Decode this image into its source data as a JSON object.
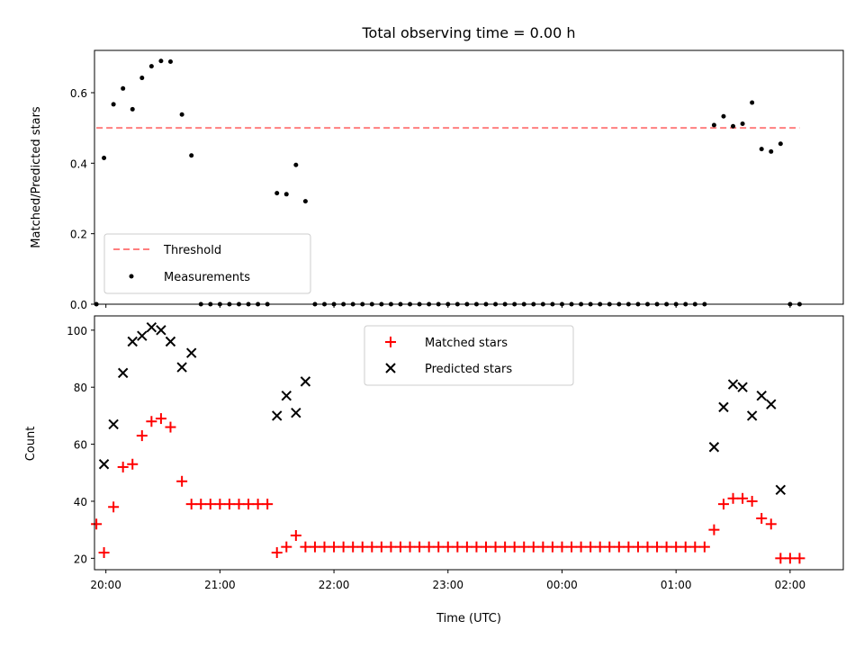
{
  "chart_data": [
    {
      "type": "scatter",
      "title": "Total observing time = 0.00 h",
      "xlabel": "",
      "ylabel": "Matched/Predicted stars",
      "ylim": [
        0,
        0.72
      ],
      "yticks": [
        "0.0",
        "0.2",
        "0.4",
        "0.6"
      ],
      "xlim": [
        "19:54",
        "02:28"
      ],
      "legend_position": "lower-left",
      "threshold": {
        "name": "Threshold",
        "value": 0.5,
        "color": "#ff7f7f",
        "x_range": [
          "19:55",
          "02:05"
        ]
      },
      "series": [
        {
          "name": "Measurements",
          "color": "#000000",
          "points": [
            [
              "19:55",
              0.0
            ],
            [
              "19:59",
              0.415
            ],
            [
              "20:04",
              0.567
            ],
            [
              "20:09",
              0.612
            ],
            [
              "20:14",
              0.553
            ],
            [
              "20:19",
              0.642
            ],
            [
              "20:24",
              0.675
            ],
            [
              "20:29",
              0.69
            ],
            [
              "20:34",
              0.688
            ],
            [
              "20:40",
              0.538
            ],
            [
              "20:45",
              0.422
            ],
            [
              "20:50",
              0.0
            ],
            [
              "20:55",
              0.0
            ],
            [
              "21:00",
              0.0
            ],
            [
              "21:05",
              0.0
            ],
            [
              "21:10",
              0.0
            ],
            [
              "21:15",
              0.0
            ],
            [
              "21:20",
              0.0
            ],
            [
              "21:25",
              0.0
            ],
            [
              "21:30",
              0.315
            ],
            [
              "21:35",
              0.312
            ],
            [
              "21:40",
              0.395
            ],
            [
              "21:45",
              0.292
            ],
            [
              "21:50",
              0.0
            ],
            [
              "21:55",
              0.0
            ],
            [
              "22:00",
              0.0
            ],
            [
              "22:05",
              0.0
            ],
            [
              "22:10",
              0.0
            ],
            [
              "22:15",
              0.0
            ],
            [
              "22:20",
              0.0
            ],
            [
              "22:25",
              0.0
            ],
            [
              "22:30",
              0.0
            ],
            [
              "22:35",
              0.0
            ],
            [
              "22:40",
              0.0
            ],
            [
              "22:45",
              0.0
            ],
            [
              "22:50",
              0.0
            ],
            [
              "22:55",
              0.0
            ],
            [
              "23:00",
              0.0
            ],
            [
              "23:05",
              0.0
            ],
            [
              "23:10",
              0.0
            ],
            [
              "23:15",
              0.0
            ],
            [
              "23:20",
              0.0
            ],
            [
              "23:25",
              0.0
            ],
            [
              "23:30",
              0.0
            ],
            [
              "23:35",
              0.0
            ],
            [
              "23:40",
              0.0
            ],
            [
              "23:45",
              0.0
            ],
            [
              "23:50",
              0.0
            ],
            [
              "23:55",
              0.0
            ],
            [
              "00:00",
              0.0
            ],
            [
              "00:05",
              0.0
            ],
            [
              "00:10",
              0.0
            ],
            [
              "00:15",
              0.0
            ],
            [
              "00:20",
              0.0
            ],
            [
              "00:25",
              0.0
            ],
            [
              "00:30",
              0.0
            ],
            [
              "00:35",
              0.0
            ],
            [
              "00:40",
              0.0
            ],
            [
              "00:45",
              0.0
            ],
            [
              "00:50",
              0.0
            ],
            [
              "00:55",
              0.0
            ],
            [
              "01:00",
              0.0
            ],
            [
              "01:05",
              0.0
            ],
            [
              "01:10",
              0.0
            ],
            [
              "01:15",
              0.0
            ],
            [
              "01:20",
              0.508
            ],
            [
              "01:25",
              0.533
            ],
            [
              "01:30",
              0.505
            ],
            [
              "01:35",
              0.512
            ],
            [
              "01:40",
              0.572
            ],
            [
              "01:45",
              0.44
            ],
            [
              "01:50",
              0.433
            ],
            [
              "01:55",
              0.455
            ],
            [
              "02:00",
              0.0
            ],
            [
              "02:05",
              0.0
            ]
          ]
        }
      ]
    },
    {
      "type": "scatter",
      "title": "",
      "xlabel": "Time (UTC)",
      "ylabel": "Count",
      "ylim": [
        16,
        105
      ],
      "yticks": [
        "20",
        "40",
        "60",
        "80",
        "100"
      ],
      "xlim": [
        "19:54",
        "02:28"
      ],
      "xticks": [
        "20:00",
        "21:00",
        "22:00",
        "23:00",
        "00:00",
        "01:00",
        "02:00"
      ],
      "legend_position": "top-center",
      "series": [
        {
          "name": "Matched stars",
          "color": "#ff0000",
          "marker": "plus",
          "points": [
            [
              "19:55",
              32
            ],
            [
              "19:59",
              22
            ],
            [
              "20:04",
              38
            ],
            [
              "20:09",
              52
            ],
            [
              "20:14",
              53
            ],
            [
              "20:19",
              63
            ],
            [
              "20:24",
              68
            ],
            [
              "20:29",
              69
            ],
            [
              "20:34",
              66
            ],
            [
              "20:40",
              47
            ],
            [
              "20:45",
              39
            ],
            [
              "20:50",
              39
            ],
            [
              "20:55",
              39
            ],
            [
              "21:00",
              39
            ],
            [
              "21:05",
              39
            ],
            [
              "21:10",
              39
            ],
            [
              "21:15",
              39
            ],
            [
              "21:20",
              39
            ],
            [
              "21:25",
              39
            ],
            [
              "21:30",
              22
            ],
            [
              "21:35",
              24
            ],
            [
              "21:40",
              28
            ],
            [
              "21:45",
              24
            ],
            [
              "21:50",
              24
            ],
            [
              "21:55",
              24
            ],
            [
              "22:00",
              24
            ],
            [
              "22:05",
              24
            ],
            [
              "22:10",
              24
            ],
            [
              "22:15",
              24
            ],
            [
              "22:20",
              24
            ],
            [
              "22:25",
              24
            ],
            [
              "22:30",
              24
            ],
            [
              "22:35",
              24
            ],
            [
              "22:40",
              24
            ],
            [
              "22:45",
              24
            ],
            [
              "22:50",
              24
            ],
            [
              "22:55",
              24
            ],
            [
              "23:00",
              24
            ],
            [
              "23:05",
              24
            ],
            [
              "23:10",
              24
            ],
            [
              "23:15",
              24
            ],
            [
              "23:20",
              24
            ],
            [
              "23:25",
              24
            ],
            [
              "23:30",
              24
            ],
            [
              "23:35",
              24
            ],
            [
              "23:40",
              24
            ],
            [
              "23:45",
              24
            ],
            [
              "23:50",
              24
            ],
            [
              "23:55",
              24
            ],
            [
              "00:00",
              24
            ],
            [
              "00:05",
              24
            ],
            [
              "00:10",
              24
            ],
            [
              "00:15",
              24
            ],
            [
              "00:20",
              24
            ],
            [
              "00:25",
              24
            ],
            [
              "00:30",
              24
            ],
            [
              "00:35",
              24
            ],
            [
              "00:40",
              24
            ],
            [
              "00:45",
              24
            ],
            [
              "00:50",
              24
            ],
            [
              "00:55",
              24
            ],
            [
              "01:00",
              24
            ],
            [
              "01:05",
              24
            ],
            [
              "01:10",
              24
            ],
            [
              "01:15",
              24
            ],
            [
              "01:20",
              30
            ],
            [
              "01:25",
              39
            ],
            [
              "01:30",
              41
            ],
            [
              "01:35",
              41
            ],
            [
              "01:40",
              40
            ],
            [
              "01:45",
              34
            ],
            [
              "01:50",
              32
            ],
            [
              "01:55",
              20
            ],
            [
              "02:00",
              20
            ],
            [
              "02:05",
              20
            ]
          ]
        },
        {
          "name": "Predicted stars",
          "color": "#000000",
          "marker": "x",
          "points": [
            [
              "19:59",
              53
            ],
            [
              "20:04",
              67
            ],
            [
              "20:09",
              85
            ],
            [
              "20:14",
              96
            ],
            [
              "20:19",
              98
            ],
            [
              "20:24",
              101
            ],
            [
              "20:29",
              100
            ],
            [
              "20:34",
              96
            ],
            [
              "20:40",
              87
            ],
            [
              "20:45",
              92
            ],
            [
              "21:30",
              70
            ],
            [
              "21:35",
              77
            ],
            [
              "21:40",
              71
            ],
            [
              "21:45",
              82
            ],
            [
              "01:20",
              59
            ],
            [
              "01:25",
              73
            ],
            [
              "01:30",
              81
            ],
            [
              "01:35",
              80
            ],
            [
              "01:40",
              70
            ],
            [
              "01:45",
              77
            ],
            [
              "01:50",
              74
            ],
            [
              "01:55",
              44
            ]
          ]
        }
      ]
    }
  ]
}
